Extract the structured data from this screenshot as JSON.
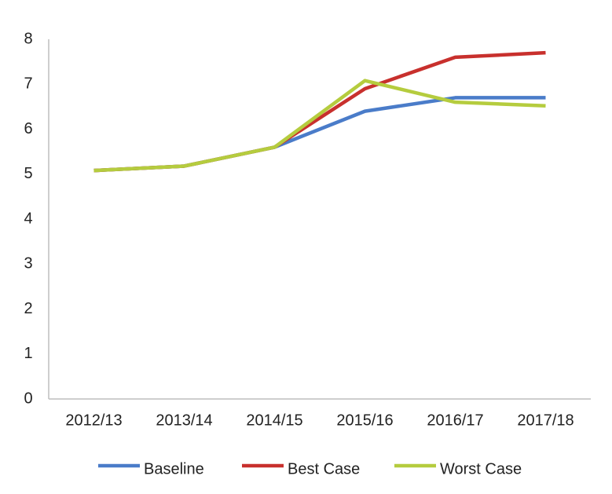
{
  "chart_data": {
    "type": "line",
    "categories": [
      "2012/13",
      "2013/14",
      "2014/15",
      "2015/16",
      "2016/17",
      "2017/18"
    ],
    "series": [
      {
        "name": "Baseline",
        "color": "#4a7cc9",
        "values": [
          5.08,
          5.18,
          5.6,
          6.4,
          6.7,
          6.7
        ]
      },
      {
        "name": "Best Case",
        "color": "#c8302d",
        "values": [
          5.08,
          5.18,
          5.6,
          6.9,
          7.6,
          7.7
        ]
      },
      {
        "name": "Worst Case",
        "color": "#b5cc3e",
        "values": [
          5.08,
          5.18,
          5.6,
          7.08,
          6.6,
          6.52
        ]
      }
    ],
    "ylim": [
      0,
      8
    ],
    "yticks": [
      0,
      1,
      2,
      3,
      4,
      5,
      6,
      7,
      8
    ],
    "grid": false,
    "legend": "bottom"
  }
}
